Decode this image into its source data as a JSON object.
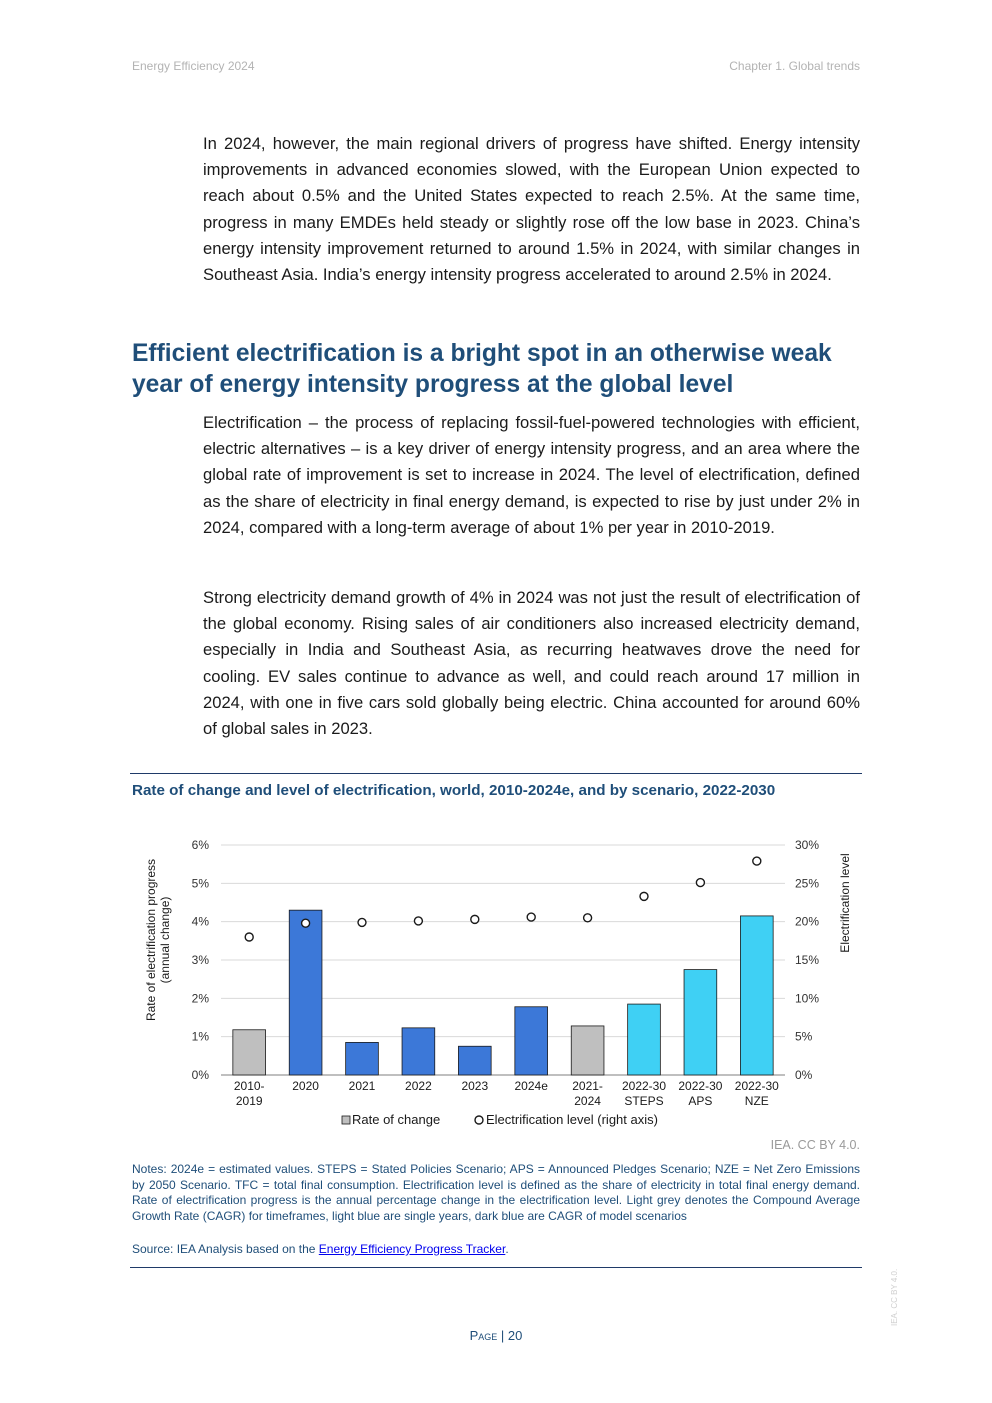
{
  "header": {
    "left": "Energy Efficiency 2024",
    "right": "Chapter 1. Global trends"
  },
  "paragraphs": {
    "p1": "In 2024, however, the main regional drivers of progress have shifted. Energy intensity improvements in advanced economies slowed, with the European Union expected to reach about 0.5% and the United States expected to reach 2.5%. At the same time, progress in many EMDEs held steady or slightly rose off the low base in 2023. China’s energy intensity improvement returned to around 1.5% in 2024, with similar changes in Southeast Asia. India’s energy intensity progress accelerated to around 2.5% in 2024.",
    "p2": "Electrification – the process of replacing fossil-fuel-powered technologies with efficient, electric alternatives – is a key driver of energy intensity progress, and an area where the global rate of improvement is set to increase in 2024. The level of electrification, defined as the share of electricity in final energy demand, is expected to rise by just under 2% in 2024, compared with a long-term average of about 1% per year in 2010-2019.",
    "p3": "Strong electricity demand growth of 4% in 2024 was not just the result of electrification of the global economy. Rising sales of air conditioners also increased electricity demand, especially in India and Southeast Asia, as recurring heatwaves drove the need for cooling. EV sales continue to advance as well, and could reach around 17 million in 2024, with one in five cars sold globally being electric. China accounted for around 60% of global sales in 2023."
  },
  "section_heading": "Efficient electrification is a bright spot in an otherwise weak year of energy intensity progress at the global level",
  "figure": {
    "title": "Rate of change and level of electrification, world, 2010-2024e, and by scenario, 2022-2030",
    "credit": "IEA. CC BY 4.0.",
    "notes": "Notes: 2024e = estimated values. STEPS = Stated Policies Scenario; APS = Announced Pledges Scenario; NZE = Net Zero Emissions by 2050 Scenario. TFC = total final consumption. Electrification level is defined as the share of electricity in total final energy demand. Rate of electrification progress is the annual percentage change in the electrification level. Light grey denotes the Compound Average Growth Rate (CAGR) for timeframes, light blue are single years, dark blue are CAGR of model scenarios",
    "source_prefix": "Source: IEA Analysis based on the ",
    "source_link": "Energy Efficiency Progress Tracker",
    "source_suffix": "."
  },
  "chart_data": {
    "type": "bar",
    "title": "Rate of change and level of electrification, world, 2010-2024e, and by scenario, 2022-2030",
    "categories": [
      [
        "2010-",
        "2019"
      ],
      [
        "2020"
      ],
      [
        "2021"
      ],
      [
        "2022"
      ],
      [
        "2023"
      ],
      [
        "2024e"
      ],
      [
        "2021-",
        "2024"
      ],
      [
        "2022-30",
        "STEPS"
      ],
      [
        "2022-30",
        "APS"
      ],
      [
        "2022-30",
        "NZE"
      ]
    ],
    "ylabel_left": [
      "Rate of electrification progress",
      "(annual change)"
    ],
    "ylabel_right": "Electrification level",
    "ylim_left": [
      0,
      6
    ],
    "ylim_right": [
      0,
      30
    ],
    "left_ticks": [
      "0%",
      "1%",
      "2%",
      "3%",
      "4%",
      "5%",
      "6%"
    ],
    "right_ticks": [
      "0%",
      "5%",
      "10%",
      "15%",
      "20%",
      "25%",
      "30%"
    ],
    "grid": true,
    "legend_position": "bottom",
    "series": [
      {
        "name": "Rate of change",
        "kind": "bar",
        "axis": "left",
        "values": [
          1.18,
          4.3,
          0.85,
          1.23,
          0.75,
          1.78,
          1.28,
          1.85,
          2.75,
          4.15
        ],
        "colors": [
          "#bfbfbf",
          "#3c78d8",
          "#3c78d8",
          "#3c78d8",
          "#3c78d8",
          "#3c78d8",
          "#bfbfbf",
          "#3fd0f4",
          "#3fd0f4",
          "#3fd0f4"
        ]
      },
      {
        "name": "Electrification level (right axis)",
        "kind": "marker",
        "axis": "right",
        "values": [
          18.0,
          19.8,
          19.9,
          20.1,
          20.3,
          20.6,
          20.5,
          23.3,
          25.1,
          27.9
        ]
      }
    ],
    "legend_swatch_color": "#bfbfbf"
  },
  "page": {
    "label": "Page",
    "number": "20"
  },
  "side_watermark": "IEA. CC BY 4.0."
}
